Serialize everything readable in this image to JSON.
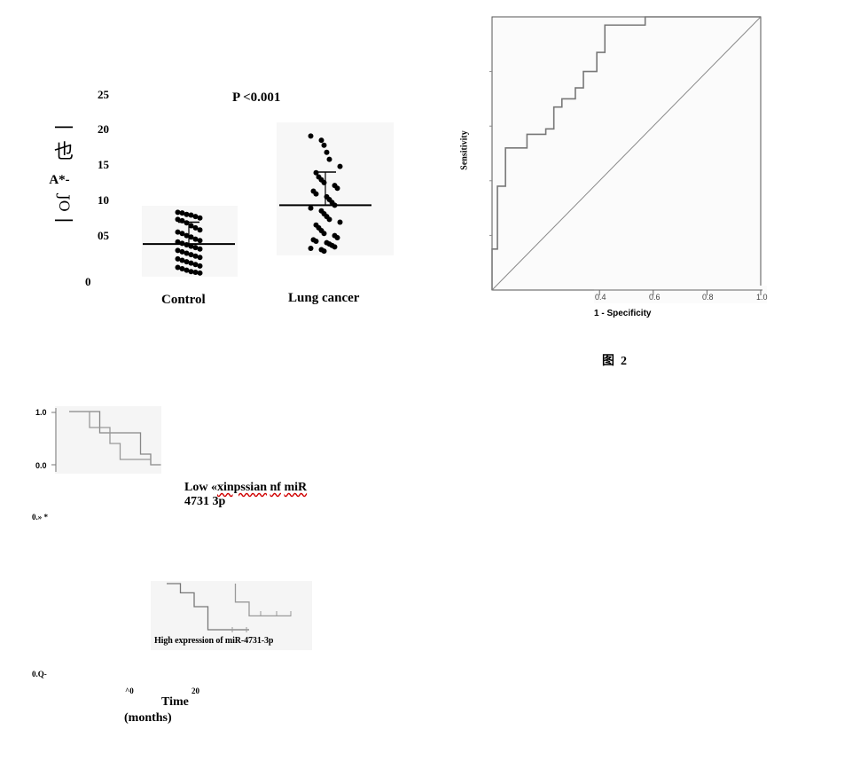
{
  "scatter_panel": {
    "pvalue": "P <0.001",
    "ylabel_glyphs": [
      "一",
      "也",
      "A*-",
      "JO",
      "一"
    ],
    "yticks": [
      "25",
      "20",
      "15",
      "10",
      "05",
      "0"
    ],
    "categories": [
      "Control",
      "Lung cancer"
    ]
  },
  "roc_panel": {
    "ylabel": "Sensitivity",
    "xlabel": "1 - Specificity",
    "xticks": [
      "0.4",
      "0.6",
      "0.8",
      "1.0"
    ],
    "figure_label": "图  2"
  },
  "km_panel": {
    "top_ytick_high": "1.0",
    "top_ytick_low": "0.0",
    "low_label_part1": "Low «",
    "low_label_word1": "xinpssian",
    "low_label_mid": " ",
    "low_label_word2": "nf",
    "low_label_mid2": " ",
    "low_label_word3": "miR",
    "low_label_line2": "4731 3p",
    "left_tick_a": "0.» *",
    "high_label": "High expression of miR-4731-3p",
    "left_tick_b": "0.Q-",
    "xtick_a": "^0",
    "xtick_b": "20",
    "xlabel_line1": "Time",
    "xlabel_line2": "(months)"
  },
  "chart_data": [
    {
      "type": "scatter",
      "categories": [
        "Control",
        "Lung cancer"
      ],
      "ylim": [
        0,
        25
      ],
      "series": [
        {
          "name": "Control",
          "mean": 4.5,
          "sd_upper": 7.6,
          "values": [
            9.0,
            8.9,
            8.7,
            8.6,
            8.4,
            8.2,
            8.0,
            7.8,
            7.5,
            7.1,
            6.8,
            6.5,
            6.2,
            6.0,
            5.7,
            5.5,
            5.2,
            5.0,
            4.8,
            4.6,
            4.4,
            4.2,
            4.0,
            3.8,
            3.6,
            3.4,
            3.2,
            3.0,
            2.8,
            2.6,
            2.4,
            2.2,
            2.0,
            1.8,
            1.6,
            1.4,
            1.2,
            1.0,
            0.8,
            0.6,
            0.5,
            0.4
          ]
        },
        {
          "name": "Lung cancer",
          "mean": 10.0,
          "sd_upper": 14.7,
          "values": [
            19.8,
            19.2,
            18.5,
            17.5,
            16.5,
            15.5,
            14.6,
            14.0,
            13.6,
            13.2,
            12.8,
            12.4,
            12.0,
            11.6,
            11.2,
            10.8,
            10.4,
            10.0,
            9.6,
            9.2,
            8.8,
            8.4,
            8.0,
            7.6,
            7.2,
            6.8,
            6.4,
            6.0,
            5.7,
            5.4,
            5.1,
            4.9,
            4.7,
            4.5,
            4.3,
            4.1,
            3.9,
            3.7,
            3.5
          ]
        }
      ]
    },
    {
      "type": "line",
      "xlabel": "1 - Specificity",
      "ylabel": "Sensitivity",
      "xlim": [
        0,
        1
      ],
      "ylim": [
        0,
        1
      ],
      "series": [
        {
          "x": [
            0.0,
            0.0,
            0.02,
            0.02,
            0.05,
            0.05,
            0.13,
            0.13,
            0.2,
            0.2,
            0.23,
            0.23,
            0.26,
            0.26,
            0.31,
            0.31,
            0.34,
            0.34,
            0.39,
            0.39,
            0.42,
            0.42,
            0.57,
            0.57,
            1.0
          ],
          "y": [
            0.0,
            0.15,
            0.15,
            0.38,
            0.38,
            0.52,
            0.52,
            0.57,
            0.57,
            0.59,
            0.59,
            0.67,
            0.67,
            0.7,
            0.7,
            0.74,
            0.74,
            0.8,
            0.8,
            0.87,
            0.87,
            0.97,
            0.97,
            1.0,
            1.0
          ]
        },
        {
          "x": [
            0,
            1
          ],
          "y": [
            0,
            1
          ]
        }
      ]
    },
    {
      "type": "line",
      "series": [
        {
          "x": [
            0,
            3,
            3,
            7,
            7,
            8,
            8,
            9
          ],
          "y": [
            1.0,
            1.0,
            0.6,
            0.6,
            0.2,
            0.2,
            0.0,
            0.0
          ]
        },
        {
          "x": [
            0,
            2,
            2,
            4,
            4,
            5,
            5,
            8,
            8
          ],
          "y": [
            1.0,
            1.0,
            0.7,
            0.7,
            0.4,
            0.4,
            0.1,
            0.1,
            0.0
          ]
        }
      ]
    },
    {
      "type": "line",
      "series": [
        {
          "x": [
            0,
            1,
            1,
            2,
            2,
            3,
            3,
            6
          ],
          "y": [
            1.0,
            1.0,
            0.8,
            0.8,
            0.5,
            0.5,
            0.0,
            0.0
          ]
        },
        {
          "x": [
            5,
            5,
            6,
            6,
            9
          ],
          "y": [
            1.0,
            0.6,
            0.6,
            0.3,
            0.3
          ]
        }
      ]
    }
  ]
}
